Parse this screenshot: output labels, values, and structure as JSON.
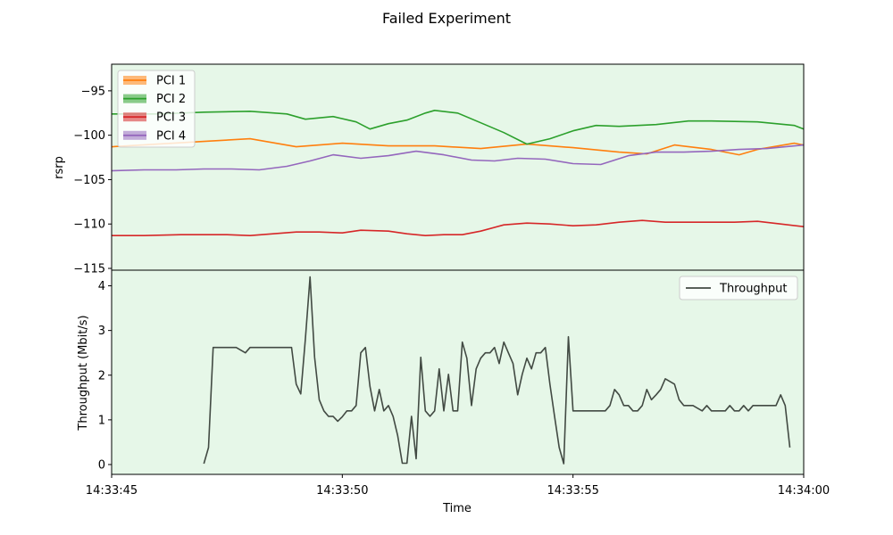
{
  "title": "Failed Experiment",
  "colors": {
    "background": "#e6f7e8",
    "pci1": "#ff7f0e",
    "pci2": "#2ca02c",
    "pci3": "#d62728",
    "pci4": "#9467bd",
    "throughput": "#424a43"
  },
  "chart_data": [
    {
      "type": "line",
      "ylabel": "rsrp",
      "ylim": [
        -115.2,
        -92
      ],
      "xlim": [
        "14:33:45",
        "14:34:00"
      ],
      "y_ticks": [
        -95,
        -100,
        -105,
        -110,
        -115
      ],
      "y_tick_labels": [
        "−95",
        "−100",
        "−105",
        "−110",
        "−115"
      ],
      "legend": "top-left",
      "series": [
        {
          "name": "PCI 1",
          "color": "#ff7f0e",
          "x": [
            "14:33:45.0",
            "14:33:46.0",
            "14:33:47.0",
            "14:33:48.0",
            "14:33:49.0",
            "14:33:50.0",
            "14:33:51.0",
            "14:33:52.0",
            "14:33:53.0",
            "14:33:54.0",
            "14:33:55.0",
            "14:33:56.0",
            "14:33:56.6",
            "14:33:57.2",
            "14:33:58.0",
            "14:33:58.6",
            "14:33:59.0",
            "14:33:59.8",
            "14:34:00.0"
          ],
          "values": [
            -101.3,
            -101.0,
            -100.7,
            -100.4,
            -101.3,
            -100.9,
            -101.2,
            -101.2,
            -101.5,
            -101.0,
            -101.4,
            -101.9,
            -102.1,
            -101.1,
            -101.6,
            -102.2,
            -101.6,
            -100.9,
            -101.1
          ]
        },
        {
          "name": "PCI 2",
          "color": "#2ca02c",
          "x": [
            "14:33:45.0",
            "14:33:46.0",
            "14:33:47.0",
            "14:33:48.0",
            "14:33:48.8",
            "14:33:49.2",
            "14:33:49.8",
            "14:33:50.3",
            "14:33:50.6",
            "14:33:51.0",
            "14:33:51.4",
            "14:33:51.8",
            "14:33:52.0",
            "14:33:52.5",
            "14:33:53.0",
            "14:33:53.5",
            "14:33:54.0",
            "14:33:54.5",
            "14:33:55.0",
            "14:33:55.5",
            "14:33:56.0",
            "14:33:56.8",
            "14:33:57.5",
            "14:33:58.0",
            "14:33:59.0",
            "14:33:59.8",
            "14:34:00.0"
          ],
          "values": [
            -97.6,
            -97.6,
            -97.4,
            -97.3,
            -97.6,
            -98.2,
            -97.9,
            -98.5,
            -99.3,
            -98.7,
            -98.3,
            -97.5,
            -97.2,
            -97.5,
            -98.6,
            -99.7,
            -101.0,
            -100.4,
            -99.5,
            -98.9,
            -99.0,
            -98.8,
            -98.4,
            -98.4,
            -98.5,
            -98.9,
            -99.3
          ]
        },
        {
          "name": "PCI 3",
          "color": "#d62728",
          "x": [
            "14:33:45.0",
            "14:33:45.7",
            "14:33:46.5",
            "14:33:47.0",
            "14:33:47.5",
            "14:33:48.0",
            "14:33:48.5",
            "14:33:49.0",
            "14:33:49.5",
            "14:33:50.0",
            "14:33:50.4",
            "14:33:51.0",
            "14:33:51.4",
            "14:33:51.8",
            "14:33:52.2",
            "14:33:52.6",
            "14:33:53.0",
            "14:33:53.5",
            "14:33:54.0",
            "14:33:54.5",
            "14:33:55.0",
            "14:33:55.5",
            "14:33:56.0",
            "14:33:56.5",
            "14:33:57.0",
            "14:33:57.5",
            "14:33:58.0",
            "14:33:58.5",
            "14:33:59.0",
            "14:33:59.5",
            "14:34:00.0"
          ],
          "values": [
            -111.3,
            -111.3,
            -111.2,
            -111.2,
            -111.2,
            -111.3,
            -111.1,
            -110.9,
            -110.9,
            -111.0,
            -110.7,
            -110.8,
            -111.1,
            -111.3,
            -111.2,
            -111.2,
            -110.8,
            -110.1,
            -109.9,
            -110.0,
            -110.2,
            -110.1,
            -109.8,
            -109.6,
            -109.8,
            -109.8,
            -109.8,
            -109.8,
            -109.7,
            -110.0,
            -110.3
          ]
        },
        {
          "name": "PCI 4",
          "color": "#9467bd",
          "x": [
            "14:33:45.0",
            "14:33:45.7",
            "14:33:46.4",
            "14:33:47.0",
            "14:33:47.6",
            "14:33:48.2",
            "14:33:48.8",
            "14:33:49.3",
            "14:33:49.8",
            "14:33:50.4",
            "14:33:51.0",
            "14:33:51.6",
            "14:33:52.2",
            "14:33:52.8",
            "14:33:53.3",
            "14:33:53.8",
            "14:33:54.4",
            "14:33:55.0",
            "14:33:55.6",
            "14:33:56.2",
            "14:33:56.8",
            "14:33:57.4",
            "14:33:58.0",
            "14:33:58.6",
            "14:33:59.2",
            "14:34:00.0"
          ],
          "values": [
            -104.0,
            -103.9,
            -103.9,
            -103.8,
            -103.8,
            -103.9,
            -103.5,
            -102.9,
            -102.2,
            -102.6,
            -102.3,
            -101.8,
            -102.2,
            -102.8,
            -102.9,
            -102.6,
            -102.7,
            -103.2,
            -103.3,
            -102.3,
            -101.9,
            -101.9,
            -101.8,
            -101.6,
            -101.5,
            -101.1
          ]
        }
      ]
    },
    {
      "type": "line",
      "xlabel": "Time",
      "ylabel": "Throughput (Mbit/s)",
      "ylim": [
        -0.22,
        4.35
      ],
      "xlim": [
        "14:33:45",
        "14:34:00"
      ],
      "x_tick_labels": [
        "14:33:45",
        "14:33:50",
        "14:33:55",
        "14:34:00"
      ],
      "y_ticks": [
        0,
        1,
        2,
        3,
        4
      ],
      "y_tick_labels": [
        "0",
        "1",
        "2",
        "3",
        "4"
      ],
      "legend": "top-right",
      "series": [
        {
          "name": "Throughput",
          "color": "#424a43",
          "x": [
            47.0,
            47.1,
            47.2,
            47.3,
            47.5,
            47.7,
            47.9,
            48.0,
            48.1,
            48.3,
            48.5,
            48.7,
            48.9,
            49.0,
            49.1,
            49.2,
            49.3,
            49.4,
            49.5,
            49.6,
            49.7,
            49.8,
            49.9,
            50.0,
            50.1,
            50.2,
            50.3,
            50.4,
            50.5,
            50.6,
            50.7,
            50.8,
            50.9,
            51.0,
            51.1,
            51.2,
            51.3,
            51.4,
            51.5,
            51.6,
            51.7,
            51.8,
            51.9,
            52.0,
            52.1,
            52.2,
            52.3,
            52.4,
            52.5,
            52.6,
            52.7,
            52.8,
            52.9,
            53.0,
            53.1,
            53.2,
            53.3,
            53.4,
            53.5,
            53.6,
            53.7,
            53.8,
            53.9,
            54.0,
            54.1,
            54.2,
            54.3,
            54.4,
            54.5,
            54.6,
            54.7,
            54.8,
            54.9,
            55.0,
            55.2,
            55.5,
            55.7,
            55.8,
            55.9,
            56.0,
            56.1,
            56.2,
            56.3,
            56.4,
            56.5,
            56.6,
            56.7,
            56.8,
            56.9,
            57.0,
            57.2,
            57.3,
            57.4,
            57.5,
            57.6,
            57.8,
            57.9,
            58.0,
            58.1,
            58.2,
            58.3,
            58.4,
            58.5,
            58.6,
            58.7,
            58.8,
            58.9,
            59.0,
            59.2,
            59.4,
            59.5,
            59.6,
            59.7
          ],
          "values": [
            0.02,
            0.38,
            2.62,
            2.62,
            2.62,
            2.62,
            2.5,
            2.62,
            2.62,
            2.62,
            2.62,
            2.62,
            2.62,
            1.8,
            1.58,
            2.82,
            4.2,
            2.4,
            1.45,
            1.2,
            1.08,
            1.08,
            0.97,
            1.07,
            1.2,
            1.2,
            1.32,
            2.5,
            2.62,
            1.75,
            1.2,
            1.68,
            1.2,
            1.32,
            1.08,
            0.65,
            0.03,
            0.03,
            1.08,
            0.13,
            2.4,
            1.2,
            1.08,
            1.2,
            2.14,
            1.2,
            2.02,
            1.2,
            1.2,
            2.74,
            2.38,
            1.32,
            2.14,
            2.38,
            2.5,
            2.5,
            2.62,
            2.26,
            2.74,
            2.5,
            2.26,
            1.56,
            2.02,
            2.38,
            2.14,
            2.5,
            2.5,
            2.62,
            1.8,
            1.08,
            0.38,
            0.02,
            2.86,
            1.2,
            1.2,
            1.2,
            1.2,
            1.32,
            1.68,
            1.56,
            1.32,
            1.32,
            1.2,
            1.2,
            1.32,
            1.68,
            1.45,
            1.56,
            1.68,
            1.92,
            1.8,
            1.45,
            1.32,
            1.32,
            1.32,
            1.2,
            1.32,
            1.2,
            1.2,
            1.2,
            1.2,
            1.32,
            1.2,
            1.2,
            1.32,
            1.2,
            1.32,
            1.32,
            1.32,
            1.32,
            1.56,
            1.32,
            0.38
          ]
        }
      ]
    }
  ]
}
